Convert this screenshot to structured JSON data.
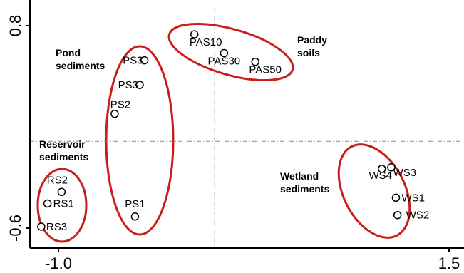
{
  "chart_data": {
    "type": "scatter",
    "title": "",
    "xlabel": "",
    "ylabel": "",
    "xlim": [
      -1.0,
      1.5
    ],
    "ylim": [
      -0.6,
      0.8
    ],
    "x_ticks": [
      "-1.0",
      "1.5"
    ],
    "y_ticks": [
      "0.8",
      "-0.6"
    ],
    "reference_lines": {
      "x": 0,
      "y": 0
    },
    "grid": false,
    "colors": {
      "points": "#000000",
      "ellipses": "#c81e1e",
      "reference_lines": "#888888"
    },
    "points": [
      {
        "label": "PAS10",
        "x": -0.13,
        "y": 0.74,
        "group": "Paddy soils"
      },
      {
        "label": "PAS30",
        "x": 0.06,
        "y": 0.61,
        "group": "Paddy soils"
      },
      {
        "label": "PAS50",
        "x": 0.26,
        "y": 0.55,
        "group": "Paddy soils"
      },
      {
        "label": "PS3",
        "x": -0.45,
        "y": 0.56,
        "group": "Pond sediments"
      },
      {
        "label": "PS3",
        "x": -0.48,
        "y": 0.39,
        "group": "Pond sediments"
      },
      {
        "label": "PS2",
        "x": -0.64,
        "y": 0.19,
        "group": "Pond sediments"
      },
      {
        "label": "PS1",
        "x": -0.51,
        "y": -0.52,
        "group": "Pond sediments"
      },
      {
        "label": "RS2",
        "x": -0.98,
        "y": -0.35,
        "group": "Reservoir sediments"
      },
      {
        "label": "RS1",
        "x": -1.07,
        "y": -0.43,
        "group": "Reservoir sediments"
      },
      {
        "label": "RS3",
        "x": -1.11,
        "y": -0.59,
        "group": "Reservoir sediments"
      },
      {
        "label": "WS4",
        "x": 1.07,
        "y": -0.19,
        "group": "Wetland sediments"
      },
      {
        "label": "WS3",
        "x": 1.13,
        "y": -0.18,
        "group": "Wetland sediments"
      },
      {
        "label": "WS1",
        "x": 1.16,
        "y": -0.39,
        "group": "Wetland sediments"
      },
      {
        "label": "WS2",
        "x": 1.17,
        "y": -0.51,
        "group": "Wetland sediments"
      }
    ],
    "groups": [
      {
        "name": "Paddy soils",
        "label_lines": [
          "Paddy",
          "soils"
        ]
      },
      {
        "name": "Pond sediments",
        "label_lines": [
          "Pond",
          "sediments"
        ]
      },
      {
        "name": "Reservoir sediments",
        "label_lines": [
          "Reservoir",
          "sediments"
        ]
      },
      {
        "name": "Wetland sediments",
        "label_lines": [
          "Wetland",
          "sediments"
        ]
      }
    ]
  }
}
